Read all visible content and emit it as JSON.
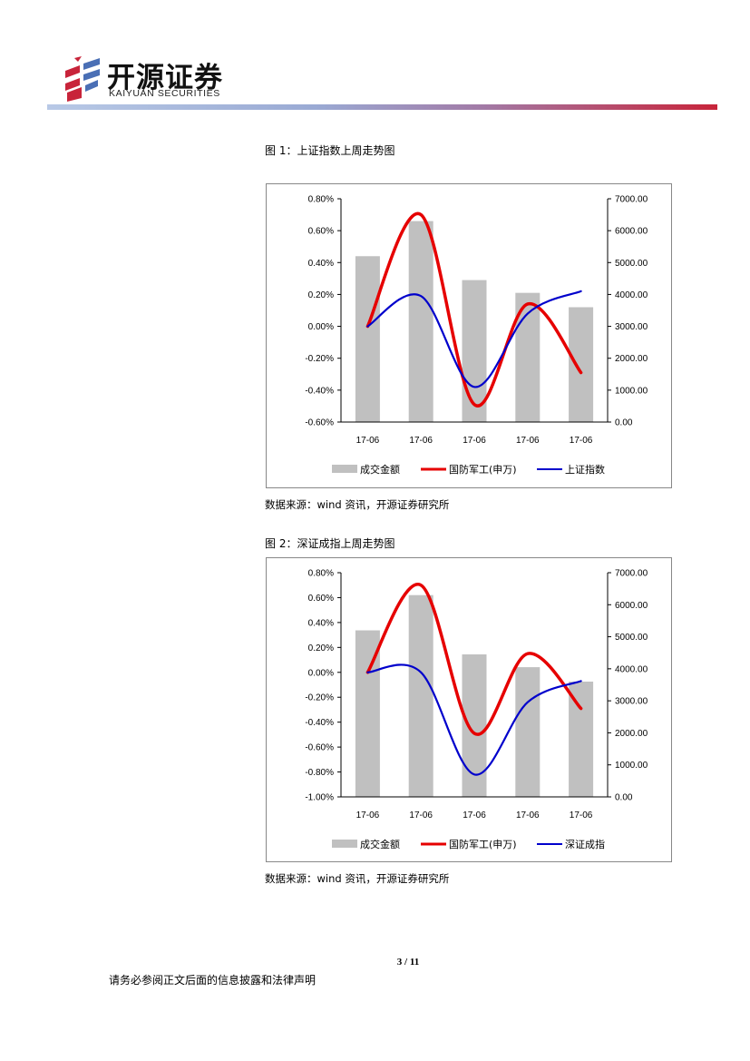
{
  "header": {
    "logo_cn": "开源证券",
    "logo_en": "KAIYUAN SECURITIES"
  },
  "colors": {
    "bar": "#c0c0c0",
    "series_red": "#e60000",
    "series_blue": "#0000cc",
    "rule_left": "#b8c9e6",
    "rule_right": "#c8243a"
  },
  "figure1": {
    "title": "图 1：上证指数上周走势图",
    "source": "数据来源：wind 资讯，开源证券研究所"
  },
  "figure2": {
    "title": "图 2：深证成指上周走势图",
    "source": "数据来源：wind 资讯，开源证券研究所"
  },
  "chart_data": [
    {
      "type": "bar",
      "categories": [
        "17-06",
        "17-06",
        "17-06",
        "17-06",
        "17-06"
      ],
      "left_axis": {
        "ylim": [
          -0.6,
          0.8
        ],
        "ticks": [
          "0.80%",
          "0.60%",
          "0.40%",
          "0.20%",
          "0.00%",
          "-0.20%",
          "-0.40%",
          "-0.60%"
        ]
      },
      "right_axis": {
        "ylim": [
          0,
          7000
        ],
        "ticks": [
          "7000.00",
          "6000.00",
          "5000.00",
          "4000.00",
          "3000.00",
          "2000.00",
          "1000.00",
          "0.00"
        ]
      },
      "series": [
        {
          "name": "成交金额",
          "kind": "bar",
          "axis": "right",
          "values": [
            5200,
            6300,
            4450,
            4050,
            3600
          ]
        },
        {
          "name": "国防军工(申万)",
          "kind": "line",
          "axis": "left",
          "values": [
            0.0,
            0.7,
            -0.49,
            0.14,
            -0.29
          ]
        },
        {
          "name": "上证指数",
          "kind": "line",
          "axis": "left",
          "values": [
            0.0,
            0.19,
            -0.38,
            0.08,
            0.22
          ]
        }
      ],
      "legend": "bottom"
    },
    {
      "type": "bar",
      "categories": [
        "17-06",
        "17-06",
        "17-06",
        "17-06",
        "17-06"
      ],
      "left_axis": {
        "ylim": [
          -1.0,
          0.8
        ],
        "ticks": [
          "0.80%",
          "0.60%",
          "0.40%",
          "0.20%",
          "0.00%",
          "-0.20%",
          "-0.40%",
          "-0.60%",
          "-0.80%",
          "-1.00%"
        ]
      },
      "right_axis": {
        "ylim": [
          0,
          7000
        ],
        "ticks": [
          "7000.00",
          "6000.00",
          "5000.00",
          "4000.00",
          "3000.00",
          "2000.00",
          "1000.00",
          "0.00"
        ]
      },
      "series": [
        {
          "name": "成交金额",
          "kind": "bar",
          "axis": "right",
          "values": [
            5200,
            6300,
            4450,
            4050,
            3600
          ]
        },
        {
          "name": "国防军工(申万)",
          "kind": "line",
          "axis": "left",
          "values": [
            0.0,
            0.7,
            -0.49,
            0.15,
            -0.29
          ]
        },
        {
          "name": "深证成指",
          "kind": "line",
          "axis": "left",
          "values": [
            0.0,
            0.0,
            -0.82,
            -0.24,
            -0.07
          ]
        }
      ],
      "legend": "bottom"
    }
  ],
  "footer": {
    "page": "3 / 11",
    "disclaimer": "请务必参阅正文后面的信息披露和法律声明"
  }
}
